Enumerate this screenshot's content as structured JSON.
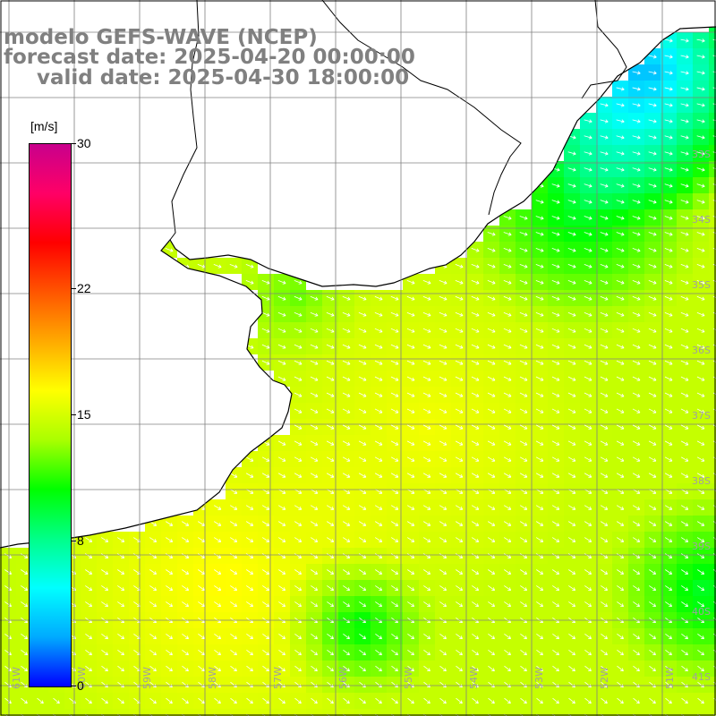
{
  "title": {
    "line1": "modelo GEFS-WAVE (NCEP)",
    "line2": "forecast date: 2025-04-20 00:00:00",
    "line3": "valid date: 2025-04-30 18:00:00"
  },
  "colors": {
    "title_text": "#808080",
    "grid": "#808080",
    "coast": "#000000",
    "label": "#a0a0a0",
    "arrow": "#ffffff",
    "land": "#ffffff"
  },
  "colorbar": {
    "unit": "[m/s]",
    "ticks": [
      "30",
      "22",
      "15",
      "8",
      "0"
    ],
    "tick_values": [
      30,
      22,
      15,
      8,
      0
    ],
    "min": 0,
    "max": 30,
    "stops": [
      "#0000ff",
      "#00aaff",
      "#00ffff",
      "#00ff88",
      "#00ff00",
      "#aaff00",
      "#ffff00",
      "#ffaa00",
      "#ff5500",
      "#ff0000",
      "#ff0066",
      "#c8008c"
    ]
  },
  "map": {
    "lat_labels": [
      "33S",
      "34S",
      "35S",
      "36S",
      "37S",
      "38S",
      "39S",
      "40S",
      "41S"
    ],
    "lon_labels": [
      "61W",
      "60W",
      "59W",
      "58W",
      "57W",
      "56W",
      "55W",
      "54W",
      "53W",
      "52W",
      "51W"
    ],
    "field_description_levels": {
      "offshore_main": 14.5,
      "northeast_coast": 6,
      "far_northeast": 3,
      "southwest_band": 16.5,
      "plume": 12,
      "southeast": 10
    }
  }
}
